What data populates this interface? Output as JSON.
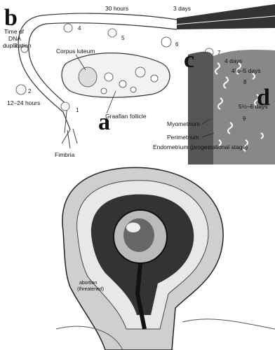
{
  "top_diagram": {
    "letters": [
      "a",
      "b",
      "c",
      "d"
    ],
    "stage_numbers": [
      "1",
      "2",
      "3",
      "4",
      "5",
      "6",
      "7",
      "8",
      "9"
    ],
    "time_of_dna_duplication": [
      "Time of",
      "DNA",
      "duplication"
    ],
    "times": [
      "12–24 hours",
      "30 hours",
      "3 days",
      "4 days",
      "4½–5 days",
      "5½–6 days"
    ],
    "labels": [
      "Corpus luteum",
      "Graafian follicle",
      "Fimbria",
      "Myometrium",
      "Perimetrium",
      "Endometrium (progestational stage)"
    ]
  },
  "bottom_illustration": {
    "caption": [
      "abortion",
      "(threatened)"
    ]
  }
}
